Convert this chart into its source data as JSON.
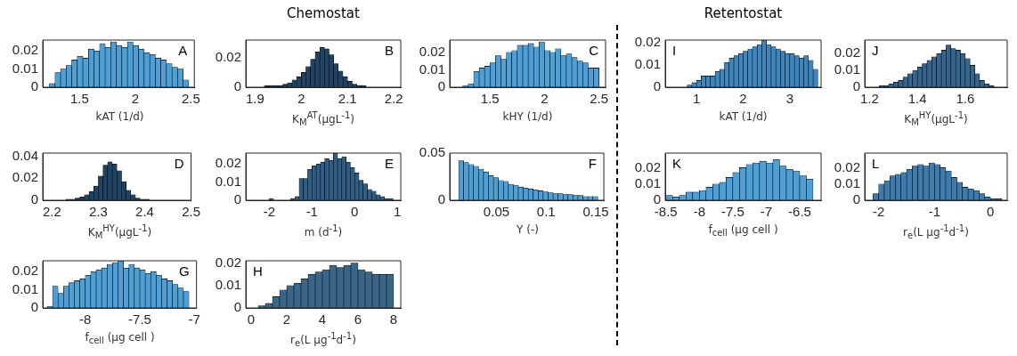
{
  "chart_data": [
    {
      "type": "histogram",
      "xlabel": "kAT (1/d)",
      "annotations": [
        "A"
      ],
      "color": "#4d9fd6",
      "xlim": [
        1.17,
        2.53
      ],
      "ylim": [
        0,
        0.026
      ],
      "xticks": [
        1.5,
        2,
        2.5
      ],
      "yticks": [
        0,
        0.01,
        0.02
      ],
      "bins": [
        1.23,
        1.28,
        1.33,
        1.38,
        1.43,
        1.48,
        1.53,
        1.58,
        1.63,
        1.68,
        1.73,
        1.78,
        1.83,
        1.88,
        1.93,
        1.98,
        2.03,
        2.08,
        2.13,
        2.18,
        2.23,
        2.28,
        2.33,
        2.38,
        2.43,
        2.48
      ],
      "values": [
        0.002,
        0.008,
        0.01,
        0.012,
        0.015,
        0.017,
        0.016,
        0.021,
        0.02,
        0.024,
        0.022,
        0.025,
        0.023,
        0.022,
        0.025,
        0.023,
        0.021,
        0.019,
        0.018,
        0.016,
        0.015,
        0.013,
        0.011,
        0.01,
        0.004
      ]
    },
    {
      "type": "histogram",
      "title": "Chemostat",
      "xlabel": "K$_{M}$$^{AT}$(μgL$^{-1}$)",
      "annotations": [
        "B"
      ],
      "color": "#1f4463",
      "xlim": [
        1.88,
        2.215
      ],
      "ylim": [
        0,
        0.032
      ],
      "xticks": [
        1.9,
        2,
        2.1,
        2.2
      ],
      "yticks": [
        0,
        0.02
      ],
      "bins": [
        1.9,
        1.91,
        1.92,
        1.93,
        1.94,
        1.95,
        1.96,
        1.97,
        1.98,
        1.99,
        2.0,
        2.01,
        2.02,
        2.03,
        2.04,
        2.05,
        2.06,
        2.07,
        2.08,
        2.09,
        2.1,
        2.11,
        2.12,
        2.13,
        2.14,
        2.15,
        2.16
      ],
      "values": [
        0,
        0,
        0.001,
        0.001,
        0.001,
        0.001,
        0.002,
        0.003,
        0.005,
        0.007,
        0.01,
        0.014,
        0.019,
        0.024,
        0.027,
        0.026,
        0.022,
        0.016,
        0.011,
        0.007,
        0.004,
        0.002,
        0.001,
        0.001,
        0,
        0
      ]
    },
    {
      "type": "histogram",
      "xlabel": "kHY (1/d)",
      "annotations": [
        "C"
      ],
      "color": "#4d9fd6",
      "xlim": [
        1.13,
        2.56
      ],
      "ylim": [
        0,
        0.027
      ],
      "xticks": [
        1.5,
        2,
        2.5
      ],
      "yticks": [
        0,
        0.01,
        0.02
      ],
      "bins": [
        1.25,
        1.3,
        1.35,
        1.4,
        1.45,
        1.5,
        1.55,
        1.6,
        1.65,
        1.7,
        1.75,
        1.8,
        1.85,
        1.9,
        1.95,
        2.0,
        2.05,
        2.1,
        2.15,
        2.2,
        2.25,
        2.3,
        2.35,
        2.4,
        2.45,
        2.5
      ],
      "values": [
        0.001,
        0.002,
        0.009,
        0.011,
        0.012,
        0.014,
        0.018,
        0.016,
        0.02,
        0.021,
        0.024,
        0.024,
        0.025,
        0.023,
        0.026,
        0.021,
        0.02,
        0.022,
        0.018,
        0.019,
        0.017,
        0.015,
        0.014,
        0.011,
        0.011
      ]
    },
    {
      "type": "histogram",
      "title": "Retentostat",
      "xlabel": "kAT (1/d)",
      "annotations": [
        "I"
      ],
      "color": "#3f86bf",
      "xlim": [
        0.33,
        3.67
      ],
      "ylim": [
        0,
        0.021
      ],
      "xticks": [
        1,
        2,
        3
      ],
      "yticks": [
        0,
        0.01,
        0.02
      ],
      "bins": [
        0.5,
        0.6,
        0.7,
        0.8,
        0.9,
        1.0,
        1.1,
        1.2,
        1.3,
        1.4,
        1.5,
        1.6,
        1.7,
        1.8,
        1.9,
        2.0,
        2.1,
        2.2,
        2.3,
        2.4,
        2.5,
        2.6,
        2.7,
        2.8,
        2.9,
        3.0,
        3.1,
        3.2,
        3.3,
        3.4,
        3.5,
        3.6
      ],
      "values": [
        0,
        0,
        0,
        0.001,
        0.002,
        0.003,
        0.005,
        0.005,
        0.005,
        0.007,
        0.008,
        0.011,
        0.013,
        0.014,
        0.015,
        0.016,
        0.017,
        0.018,
        0.019,
        0.021,
        0.019,
        0.018,
        0.017,
        0.016,
        0.015,
        0.015,
        0.014,
        0.013,
        0.014,
        0.012,
        0.008
      ]
    },
    {
      "type": "histogram",
      "xlabel": "K$_{M}$$^{HY}$(μgL$^{-1}$)",
      "annotations": [
        "J"
      ],
      "color": "#35658d",
      "xlim": [
        1.18,
        1.775
      ],
      "ylim": [
        0,
        0.028
      ],
      "xticks": [
        1.2,
        1.4,
        1.6
      ],
      "yticks": [
        0,
        0.01,
        0.02
      ],
      "bins": [
        1.22,
        1.24,
        1.26,
        1.28,
        1.3,
        1.32,
        1.34,
        1.36,
        1.38,
        1.4,
        1.42,
        1.44,
        1.46,
        1.48,
        1.5,
        1.52,
        1.54,
        1.56,
        1.58,
        1.6,
        1.62,
        1.64,
        1.66,
        1.68,
        1.7,
        1.72,
        1.74,
        1.76
      ],
      "values": [
        0,
        0.001,
        0.001,
        0.002,
        0.003,
        0.004,
        0.006,
        0.008,
        0.01,
        0.012,
        0.014,
        0.016,
        0.018,
        0.02,
        0.022,
        0.025,
        0.023,
        0.022,
        0.02,
        0.017,
        0.013,
        0.008,
        0.004,
        0.002,
        0.001,
        0,
        0
      ]
    },
    {
      "type": "histogram",
      "xlabel": "K$_{M}$$^{HY}$(μgL$^{-1}$)",
      "annotations": [
        "D"
      ],
      "color": "#1f4463",
      "xlim": [
        2.18,
        2.5
      ],
      "ylim": [
        0,
        0.043
      ],
      "xticks": [
        2.2,
        2.3,
        2.4,
        2.5
      ],
      "yticks": [
        0,
        0.02,
        0.04
      ],
      "bins": [
        2.22,
        2.23,
        2.24,
        2.25,
        2.26,
        2.27,
        2.28,
        2.29,
        2.3,
        2.31,
        2.32,
        2.33,
        2.34,
        2.35,
        2.36,
        2.37,
        2.38,
        2.39,
        2.4,
        2.41,
        2.42
      ],
      "values": [
        0,
        0.001,
        0.001,
        0.002,
        0.003,
        0.005,
        0.008,
        0.013,
        0.022,
        0.032,
        0.035,
        0.033,
        0.027,
        0.017,
        0.009,
        0.005,
        0.002,
        0.001,
        0.001,
        0
      ]
    },
    {
      "type": "histogram",
      "xlabel": "m (d$^{-1}$)",
      "annotations": [
        "E"
      ],
      "color": "#2f5f85",
      "xlim": [
        -2.55,
        1.08
      ],
      "ylim": [
        0,
        0.026
      ],
      "xticks": [
        -2,
        -1,
        0,
        1
      ],
      "yticks": [
        0,
        0.01,
        0.02
      ],
      "bins": [
        -2.5,
        -2.4,
        -2.3,
        -2.2,
        -2.1,
        -2.0,
        -1.9,
        -1.8,
        -1.7,
        -1.6,
        -1.5,
        -1.4,
        -1.3,
        -1.2,
        -1.1,
        -1.0,
        -0.9,
        -0.8,
        -0.7,
        -0.6,
        -0.5,
        -0.4,
        -0.3,
        -0.2,
        -0.1,
        0.0,
        0.1,
        0.2,
        0.3,
        0.4,
        0.5,
        0.6,
        0.7,
        0.8,
        0.9
      ],
      "values": [
        0,
        0,
        0,
        0,
        0,
        0.001,
        0,
        0,
        0,
        0,
        0.001,
        0.002,
        0.012,
        0.012,
        0.017,
        0.019,
        0.02,
        0.021,
        0.023,
        0.022,
        0.026,
        0.023,
        0.024,
        0.021,
        0.018,
        0.015,
        0.011,
        0.009,
        0.006,
        0.005,
        0.003,
        0.002,
        0.001,
        0.001
      ]
    },
    {
      "type": "histogram",
      "xlabel": "Y (-)",
      "annotations": [
        "F"
      ],
      "color": "#4d9fd6",
      "xlim": [
        0.003,
        0.158
      ],
      "ylim": [
        0,
        0.05
      ],
      "xticks": [
        0.05,
        0.1,
        0.15
      ],
      "yticks": [
        0,
        0.05
      ],
      "bins": [
        0.012,
        0.017,
        0.022,
        0.027,
        0.032,
        0.037,
        0.042,
        0.047,
        0.052,
        0.057,
        0.062,
        0.067,
        0.072,
        0.077,
        0.082,
        0.087,
        0.092,
        0.097,
        0.102,
        0.107,
        0.112,
        0.117,
        0.122,
        0.127,
        0.132,
        0.137,
        0.142,
        0.147,
        0.152
      ],
      "values": [
        0.042,
        0.04,
        0.038,
        0.036,
        0.033,
        0.03,
        0.026,
        0.024,
        0.021,
        0.02,
        0.017,
        0.016,
        0.014,
        0.013,
        0.012,
        0.011,
        0.01,
        0.009,
        0.008,
        0.007,
        0.007,
        0.006,
        0.006,
        0.005,
        0.005,
        0.004,
        0.004,
        0.004
      ]
    },
    {
      "type": "histogram",
      "xlabel": "f$_{cell}$ (μg cell   )",
      "annotations": [
        "K"
      ],
      "color": "#4d9fd6",
      "xlim": [
        -8.51,
        -6.18
      ],
      "ylim": [
        0,
        0.029
      ],
      "xticks": [
        -8.5,
        -8,
        -7.5,
        -7,
        -6.5
      ],
      "yticks": [
        0,
        0.01,
        0.02
      ],
      "bins": [
        -8.5,
        -8.4,
        -8.3,
        -8.2,
        -8.1,
        -8.0,
        -7.9,
        -7.8,
        -7.7,
        -7.6,
        -7.5,
        -7.4,
        -7.3,
        -7.2,
        -7.1,
        -7.0,
        -6.9,
        -6.8,
        -6.7,
        -6.6,
        -6.5,
        -6.4,
        -6.3
      ],
      "values": [
        0.003,
        0.002,
        0.003,
        0.005,
        0.005,
        0.006,
        0.008,
        0.01,
        0.011,
        0.014,
        0.017,
        0.02,
        0.022,
        0.023,
        0.024,
        0.023,
        0.025,
        0.021,
        0.019,
        0.018,
        0.015,
        0.013
      ]
    },
    {
      "type": "histogram",
      "xlabel": "r$_{e}$(L μg$^{-1}$d$^{-1}$)",
      "annotations": [
        "L"
      ],
      "color": "#3f7cad",
      "xlim": [
        -2.25,
        0.3
      ],
      "ylim": [
        0,
        0.029
      ],
      "xticks": [
        -2,
        -1,
        0
      ],
      "yticks": [
        0,
        0.01,
        0.02
      ],
      "bins": [
        -2.1,
        -2.0,
        -1.9,
        -1.8,
        -1.7,
        -1.6,
        -1.5,
        -1.4,
        -1.3,
        -1.2,
        -1.1,
        -1.0,
        -0.9,
        -0.8,
        -0.7,
        -0.6,
        -0.5,
        -0.4,
        -0.3,
        -0.2,
        -0.1,
        0.0,
        0.1,
        0.2
      ],
      "values": [
        0.004,
        0.01,
        0.012,
        0.015,
        0.016,
        0.017,
        0.019,
        0.021,
        0.022,
        0.021,
        0.023,
        0.022,
        0.02,
        0.018,
        0.014,
        0.011,
        0.008,
        0.007,
        0.006,
        0.004,
        0.002,
        0.001,
        0.001
      ]
    },
    {
      "type": "histogram",
      "xlabel": "f$_{cell}$ (μg cell   )",
      "annotations": [
        "G"
      ],
      "color": "#4d9fd6",
      "xlim": [
        -8.39,
        -6.98
      ],
      "ylim": [
        0,
        0.026
      ],
      "xticks": [
        -8,
        -7.5,
        -7
      ],
      "yticks": [
        0,
        0.01,
        0.02
      ],
      "bins": [
        -8.35,
        -8.3,
        -8.25,
        -8.2,
        -8.15,
        -8.1,
        -8.05,
        -8.0,
        -7.95,
        -7.9,
        -7.85,
        -7.8,
        -7.75,
        -7.7,
        -7.65,
        -7.6,
        -7.55,
        -7.5,
        -7.45,
        -7.4,
        -7.35,
        -7.3,
        -7.25,
        -7.2,
        -7.15,
        -7.1,
        -7.05
      ],
      "values": [
        0.001,
        0.012,
        0.008,
        0.012,
        0.014,
        0.015,
        0.016,
        0.018,
        0.02,
        0.021,
        0.022,
        0.024,
        0.025,
        0.026,
        0.022,
        0.024,
        0.022,
        0.021,
        0.019,
        0.02,
        0.018,
        0.016,
        0.015,
        0.013,
        0.011,
        0.009
      ]
    },
    {
      "type": "histogram",
      "xlabel": "r$_{e}$(L μg$^{-1}$d$^{-1}$)",
      "annotations": [
        "H"
      ],
      "color": "#3a6687",
      "xlim": [
        -0.3,
        8.4
      ],
      "ylim": [
        0,
        0.021
      ],
      "xticks": [
        0,
        2,
        4,
        6,
        8
      ],
      "yticks": [
        0,
        0.01,
        0.02
      ],
      "bins": [
        0,
        0.4,
        0.8,
        1.2,
        1.6,
        2.0,
        2.4,
        2.8,
        3.2,
        3.6,
        4.0,
        4.4,
        4.8,
        5.2,
        5.6,
        6.0,
        6.4,
        6.8,
        7.2,
        7.6,
        8.0
      ],
      "values": [
        0,
        0.001,
        0.002,
        0.005,
        0.008,
        0.01,
        0.011,
        0.013,
        0.015,
        0.016,
        0.017,
        0.019,
        0.018,
        0.019,
        0.02,
        0.017,
        0.016,
        0.015,
        0.015,
        0.015
      ]
    }
  ]
}
